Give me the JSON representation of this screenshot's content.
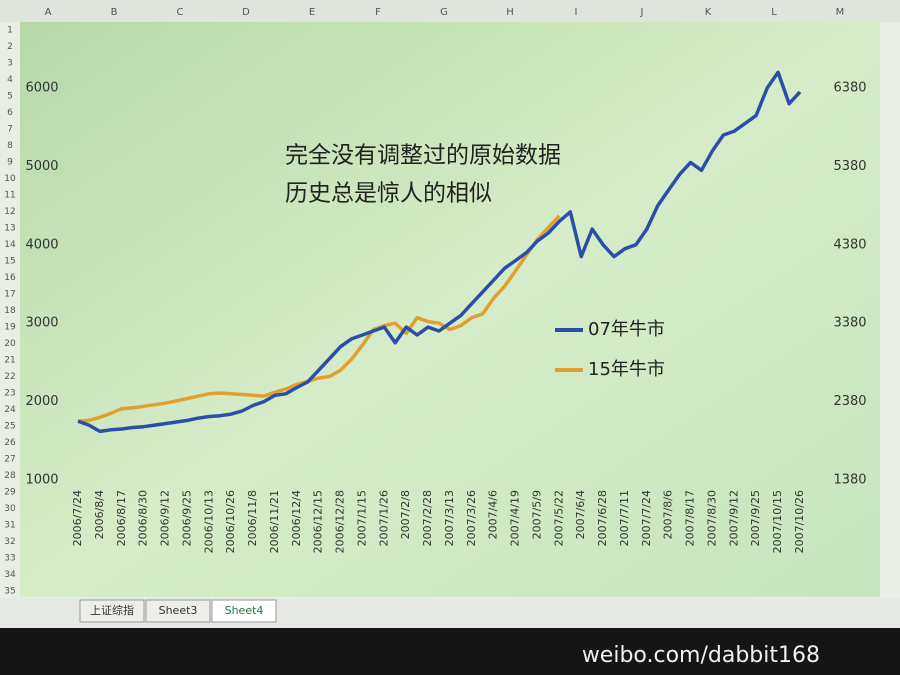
{
  "sheet": {
    "columns": [
      "A",
      "B",
      "C",
      "D",
      "E",
      "F",
      "G",
      "H",
      "I",
      "J",
      "K",
      "L",
      "M"
    ],
    "rows": [
      1,
      2,
      3,
      4,
      5,
      6,
      7,
      8,
      9,
      10,
      11,
      12,
      13,
      14,
      15,
      16,
      17,
      18,
      19,
      20,
      21,
      22,
      23,
      24,
      25,
      26,
      27,
      28,
      29,
      30,
      31,
      32,
      33,
      34,
      35
    ],
    "tabs": [
      "上证综指",
      "Sheet3",
      "Sheet4"
    ]
  },
  "watermark": "weibo.com/dabbit168",
  "chart_data": {
    "type": "line",
    "annotations": [
      "完全没有调整过的原始数据",
      "历史总是惊人的相似"
    ],
    "categories": [
      "2006/7/24",
      null,
      "2006/8/4",
      null,
      "2006/8/17",
      null,
      "2006/8/30",
      null,
      "2006/9/12",
      null,
      "2006/9/25",
      null,
      "2006/10/13",
      null,
      "2006/10/26",
      null,
      "2006/11/8",
      null,
      "2006/11/21",
      null,
      "2006/12/4",
      null,
      "2006/12/15",
      null,
      "2006/12/28",
      null,
      "2007/1/15",
      null,
      "2007/1/26",
      null,
      "2007/2/8",
      null,
      "2007/2/28",
      null,
      "2007/3/13",
      null,
      "2007/3/26",
      null,
      "2007/4/6",
      null,
      "2007/4/19",
      null,
      "2007/5/9",
      null,
      "2007/5/22",
      null,
      "2007/6/4",
      null,
      "2007/6/28",
      null,
      "2007/7/11",
      null,
      "2007/7/24",
      null,
      "2007/8/6",
      null,
      "2007/8/17",
      null,
      "2007/8/30",
      null,
      "2007/9/12",
      null,
      "2007/9/25",
      null,
      "2007/10/15",
      null,
      "2007/10/26"
    ],
    "series": [
      {
        "name": "07年牛市",
        "color": "#2b4fa8",
        "values": [
          1750,
          1700,
          1620,
          1640,
          1650,
          1670,
          1680,
          1700,
          1720,
          1740,
          1760,
          1790,
          1810,
          1820,
          1840,
          1880,
          1950,
          2000,
          2080,
          2100,
          2180,
          2250,
          2400,
          2550,
          2700,
          2800,
          2850,
          2900,
          2950,
          2750,
          2950,
          2850,
          2950,
          2900,
          3000,
          3100,
          3250,
          3400,
          3550,
          3700,
          3800,
          3900,
          4050,
          4150,
          4300,
          4420,
          3850,
          4200,
          4000,
          3850,
          3950,
          4000,
          4200,
          4500,
          4700,
          4900,
          5050,
          4950,
          5200,
          5400,
          5450,
          5550,
          5650,
          6000,
          6200,
          5800,
          5950
        ]
      },
      {
        "name": "15年牛市",
        "color": "#e0a030",
        "axis": "y2",
        "values": [
          2130,
          2140,
          2180,
          2230,
          2290,
          2300,
          2320,
          2340,
          2360,
          2390,
          2420,
          2450,
          2480,
          2490,
          2480,
          2470,
          2460,
          2450,
          2500,
          2540,
          2600,
          2640,
          2680,
          2700,
          2780,
          2920,
          3100,
          3300,
          3350,
          3380,
          3250,
          3450,
          3400,
          3380,
          3300,
          3350,
          3450,
          3500,
          3700,
          3850,
          4050,
          4250,
          4450,
          4600,
          4750,
          null,
          null,
          null,
          null,
          null,
          null,
          null,
          null,
          null,
          null,
          null,
          null,
          null,
          null,
          null,
          null,
          null,
          null,
          null,
          null,
          null,
          null
        ]
      }
    ],
    "ylim": [
      1000,
      6500
    ],
    "yticks": [
      1000,
      2000,
      3000,
      4000,
      5000,
      6000
    ],
    "y2lim": [
      1380,
      6880
    ],
    "y2ticks": [
      1380,
      2380,
      3380,
      4380,
      5380,
      6380
    ]
  }
}
